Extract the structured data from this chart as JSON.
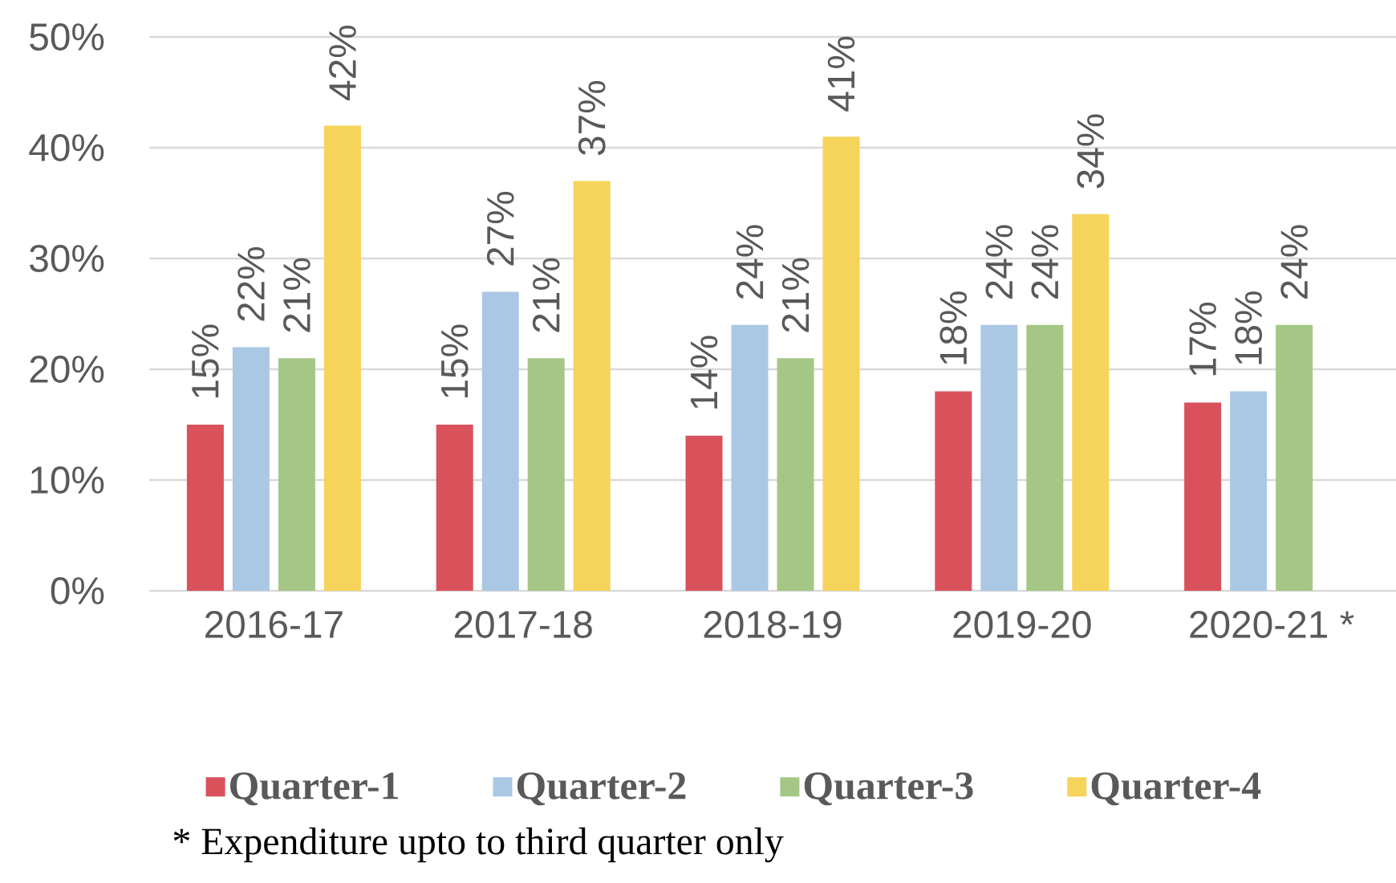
{
  "chart_data": {
    "type": "bar",
    "categories": [
      "2016-17",
      "2017-18",
      "2018-19",
      "2019-20",
      "2020-21 *"
    ],
    "series": [
      {
        "name": "Quarter-1",
        "color": "#d9515b",
        "values": [
          15,
          15,
          14,
          18,
          17
        ],
        "value_labels": [
          "15%",
          "15%",
          "14%",
          "18%",
          "17%"
        ]
      },
      {
        "name": "Quarter-2",
        "color": "#aac8e4",
        "values": [
          22,
          27,
          24,
          24,
          18
        ],
        "value_labels": [
          "22%",
          "27%",
          "24%",
          "24%",
          "18%"
        ]
      },
      {
        "name": "Quarter-3",
        "color": "#a5c785",
        "values": [
          21,
          21,
          21,
          24,
          24
        ],
        "value_labels": [
          "21%",
          "21%",
          "21%",
          "24%",
          "24%"
        ]
      },
      {
        "name": "Quarter-4",
        "color": "#f6d35a",
        "values": [
          42,
          37,
          41,
          34,
          null
        ],
        "value_labels": [
          "42%",
          "37%",
          "41%",
          "34%",
          null
        ]
      }
    ],
    "ylim": [
      0,
      50
    ],
    "yticks": [
      {
        "value": 0,
        "label": "0%"
      },
      {
        "value": 10,
        "label": "10%"
      },
      {
        "value": 20,
        "label": "20%"
      },
      {
        "value": 30,
        "label": "30%"
      },
      {
        "value": 40,
        "label": "40%"
      },
      {
        "value": 50,
        "label": "50%"
      }
    ],
    "grid": "y",
    "legend": "bottom",
    "annotations": [
      "* Expenditure upto to third quarter only"
    ]
  }
}
